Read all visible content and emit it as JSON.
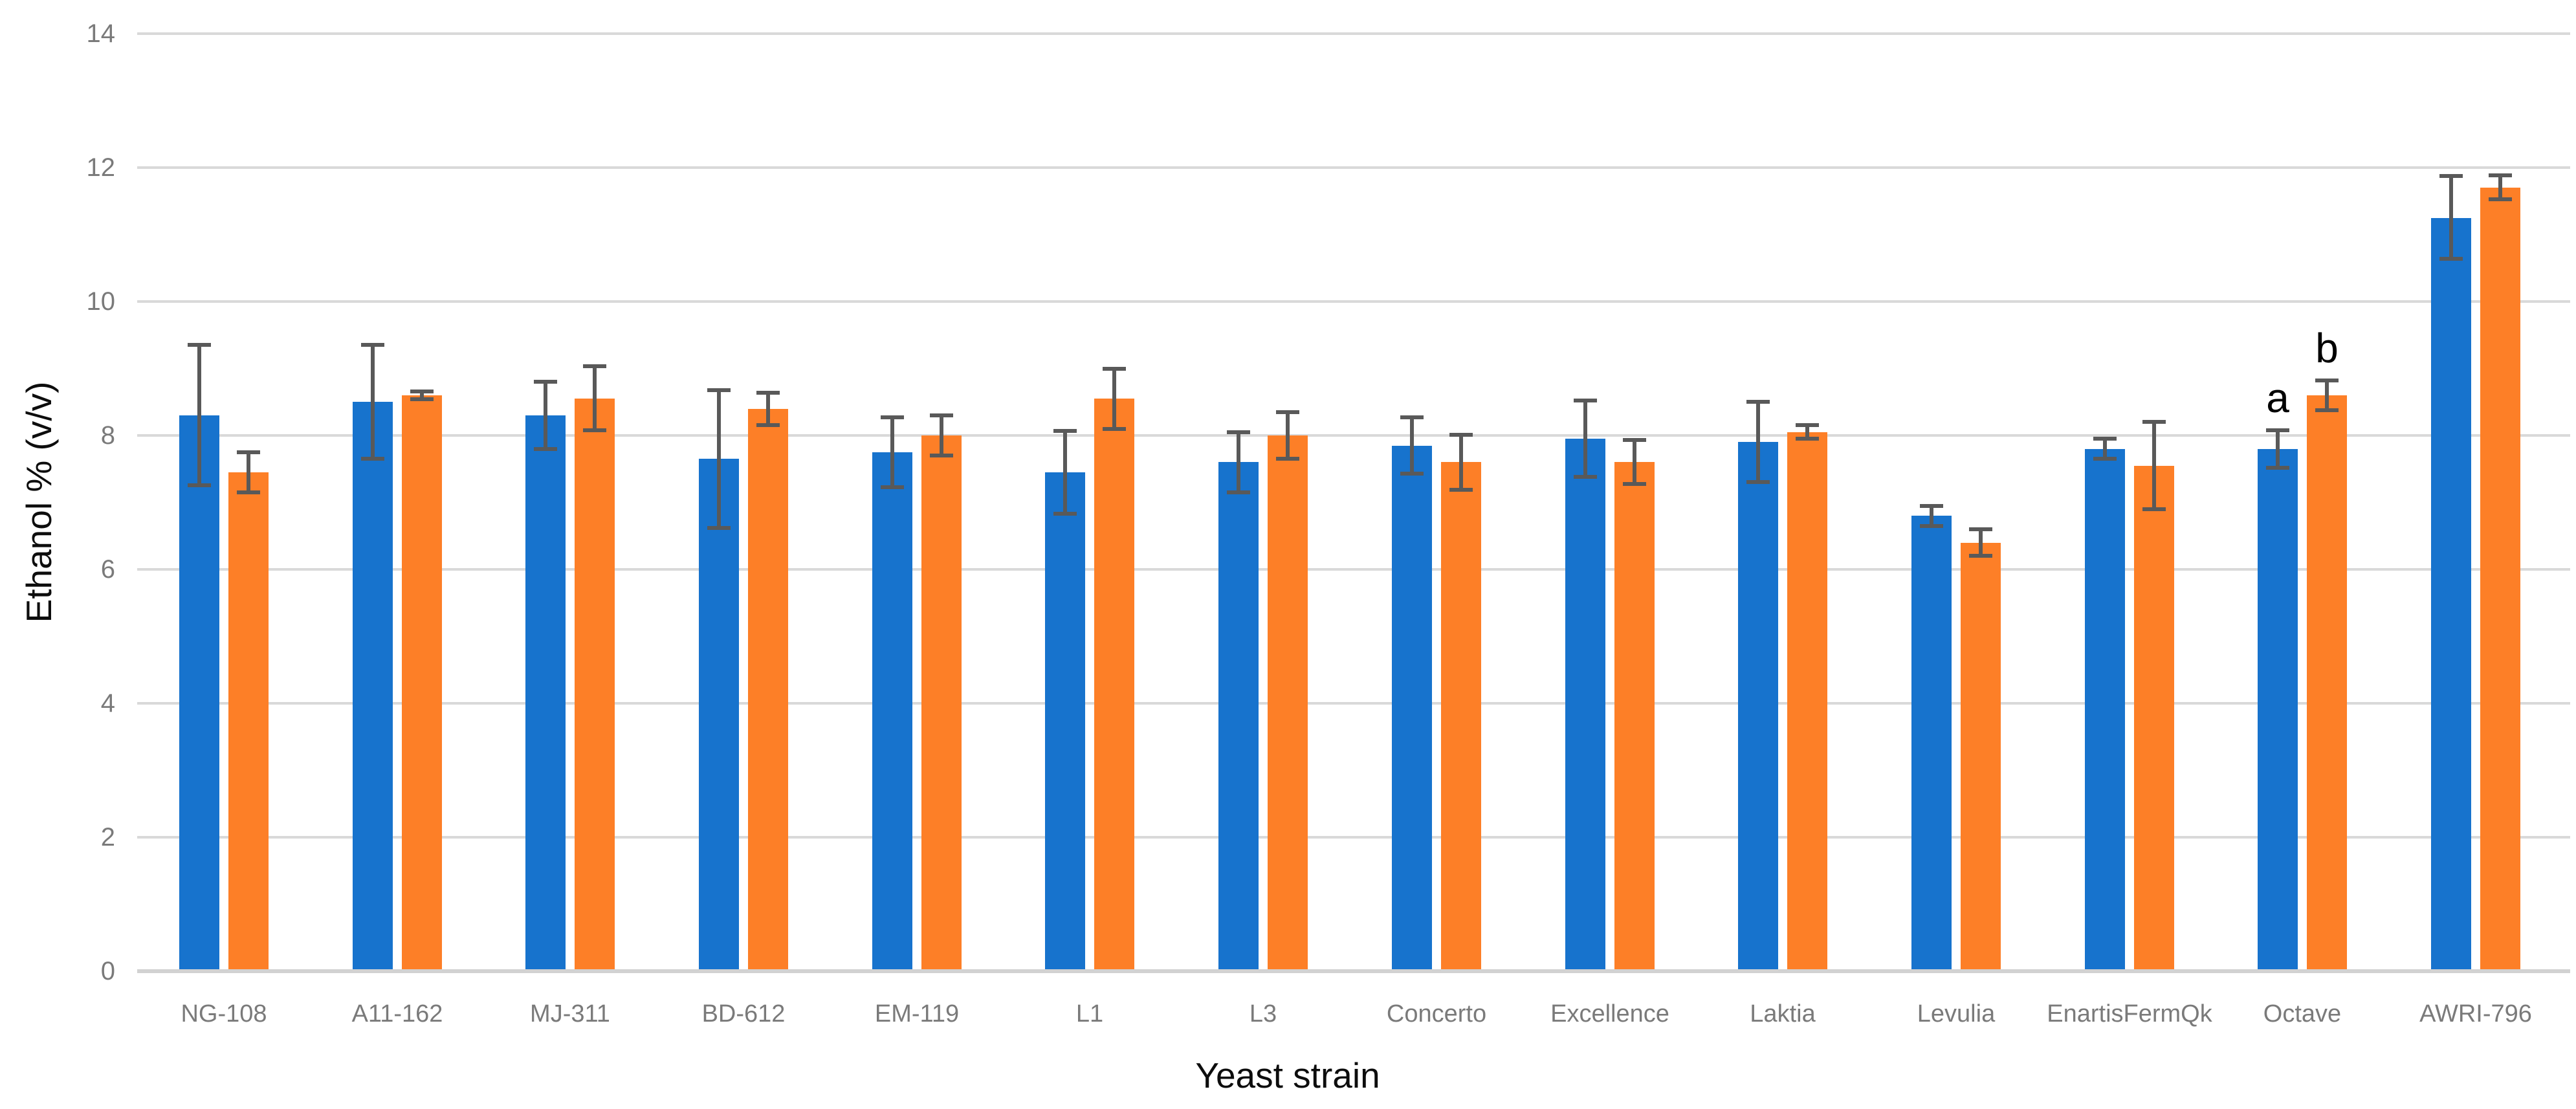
{
  "chart_data": {
    "type": "bar",
    "title": "",
    "xlabel": "Yeast strain",
    "ylabel": "Ethanol % (v/v)",
    "ylim": [
      0,
      14
    ],
    "yticks": [
      0,
      2,
      4,
      6,
      8,
      10,
      12,
      14
    ],
    "grid": "horizontal",
    "legend_position": "none",
    "categories": [
      "NG-108",
      "A11-162",
      "MJ-311",
      "BD-612",
      "EM-119",
      "L1",
      "L3",
      "Concerto",
      "Excellence",
      "Laktia",
      "Levulia",
      "EnartisFermQk",
      "Octave",
      "AWRI-796"
    ],
    "series": [
      {
        "name": "blue-series",
        "color": "#1773CD",
        "values": [
          8.3,
          8.5,
          8.3,
          7.65,
          7.75,
          7.45,
          7.6,
          7.85,
          7.95,
          7.9,
          6.8,
          7.8,
          7.8,
          11.25
        ],
        "errors": [
          1.05,
          0.85,
          0.5,
          1.03,
          0.52,
          0.62,
          0.45,
          0.42,
          0.57,
          0.6,
          0.15,
          0.15,
          0.28,
          0.62
        ]
      },
      {
        "name": "orange-series",
        "color": "#FD7F27",
        "values": [
          7.45,
          8.6,
          8.55,
          8.4,
          8.0,
          8.55,
          8.0,
          7.6,
          7.6,
          8.05,
          6.4,
          7.55,
          8.6,
          11.7
        ],
        "errors": [
          0.3,
          0.06,
          0.48,
          0.24,
          0.3,
          0.45,
          0.35,
          0.41,
          0.33,
          0.1,
          0.2,
          0.65,
          0.22,
          0.18
        ]
      }
    ],
    "annotations": [
      {
        "text": "a",
        "category": "Octave",
        "series_index": 0
      },
      {
        "text": "b",
        "category": "Octave",
        "series_index": 1
      }
    ]
  },
  "colors": {
    "background": "#FFFFFF",
    "gridline": "#D9D9D9",
    "axis_line": "#D2D2D2",
    "tick_label": "#7A7A7A",
    "category_label": "#7A7A7A",
    "axis_title": "#0D0D0D",
    "annotation": "#000000",
    "error_bar": "#595959"
  }
}
